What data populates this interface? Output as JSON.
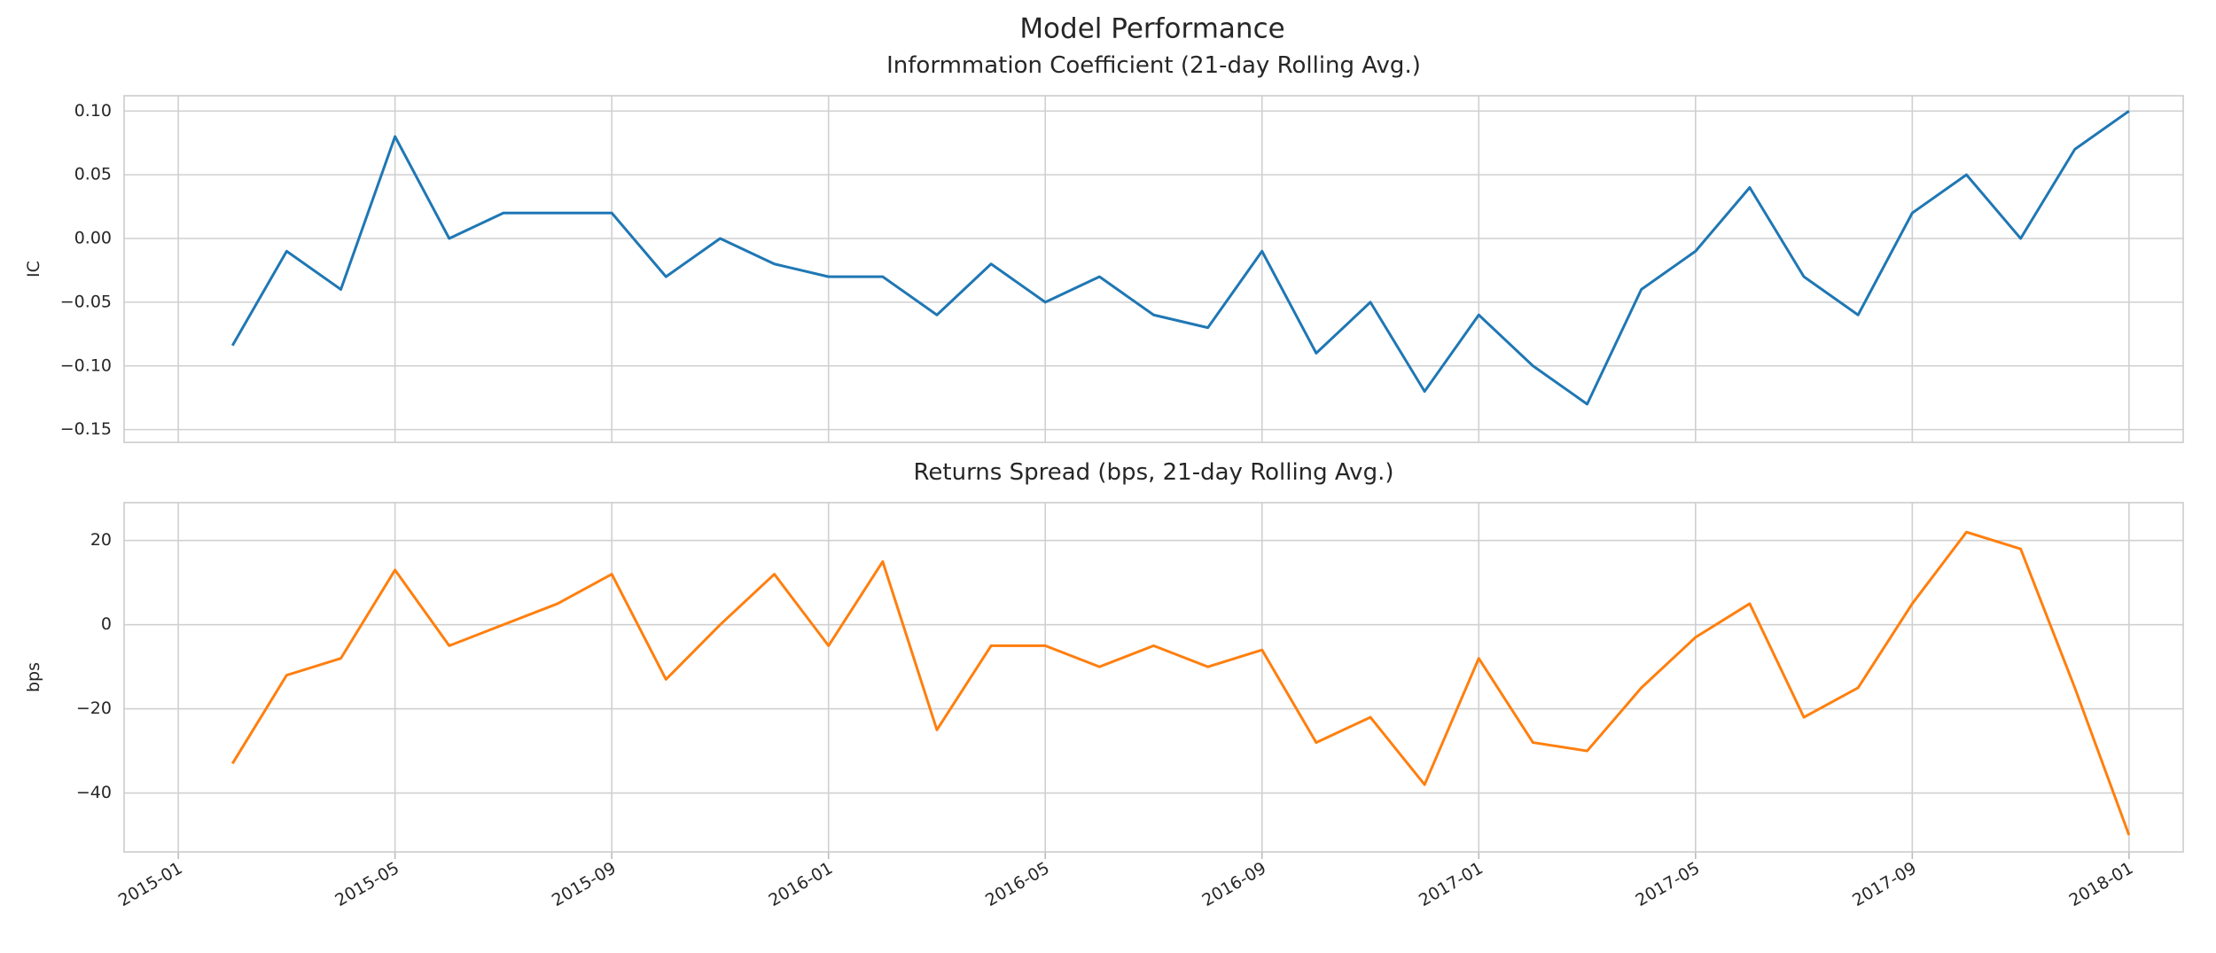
{
  "title": "Model Performance",
  "chart_data": [
    {
      "type": "line",
      "title": "Informmation Coefficient (21-day Rolling Avg.)",
      "ylabel": "IC",
      "x": [
        "2015-02",
        "2015-03",
        "2015-04",
        "2015-05",
        "2015-06",
        "2015-07",
        "2015-08",
        "2015-09",
        "2015-10",
        "2015-11",
        "2015-12",
        "2016-01",
        "2016-02",
        "2016-03",
        "2016-04",
        "2016-05",
        "2016-06",
        "2016-07",
        "2016-08",
        "2016-09",
        "2016-10",
        "2016-11",
        "2016-12",
        "2017-01",
        "2017-02",
        "2017-03",
        "2017-04",
        "2017-05",
        "2017-06",
        "2017-07",
        "2017-08",
        "2017-09",
        "2017-10",
        "2017-11",
        "2017-12",
        "2018-01"
      ],
      "series": [
        {
          "name": "IC",
          "color": "#1f77b4",
          "values": [
            -0.084,
            -0.01,
            -0.04,
            0.08,
            0.0,
            0.02,
            0.02,
            0.02,
            -0.03,
            0.0,
            -0.02,
            -0.03,
            -0.03,
            -0.06,
            -0.02,
            -0.05,
            -0.03,
            -0.06,
            -0.07,
            -0.01,
            -0.09,
            -0.05,
            -0.12,
            -0.06,
            -0.1,
            -0.13,
            -0.04,
            -0.01,
            0.04,
            -0.03,
            -0.06,
            0.02,
            0.05,
            0.0,
            0.07,
            0.1
          ]
        }
      ],
      "xlim": [
        "2014-12",
        "2018-02"
      ],
      "xticks": [
        "2015-01",
        "2015-05",
        "2015-09",
        "2016-01",
        "2016-05",
        "2016-09",
        "2017-01",
        "2017-05",
        "2017-09",
        "2018-01"
      ],
      "ylim": [
        -0.16,
        0.112
      ],
      "yticks": [
        {
          "value": -0.15,
          "label": "−0.15"
        },
        {
          "value": -0.1,
          "label": "−0.10"
        },
        {
          "value": -0.05,
          "label": "−0.05"
        },
        {
          "value": 0,
          "label": "0.00"
        },
        {
          "value": 0.05,
          "label": "0.05"
        },
        {
          "value": 0.1,
          "label": "0.10"
        }
      ],
      "grid": true
    },
    {
      "type": "line",
      "title": "Returns Spread (bps, 21-day Rolling Avg.)",
      "ylabel": "bps",
      "x": [
        "2015-02",
        "2015-03",
        "2015-04",
        "2015-05",
        "2015-06",
        "2015-07",
        "2015-08",
        "2015-09",
        "2015-10",
        "2015-11",
        "2015-12",
        "2016-01",
        "2016-02",
        "2016-03",
        "2016-04",
        "2016-05",
        "2016-06",
        "2016-07",
        "2016-08",
        "2016-09",
        "2016-10",
        "2016-11",
        "2016-12",
        "2017-01",
        "2017-02",
        "2017-03",
        "2017-04",
        "2017-05",
        "2017-06",
        "2017-07",
        "2017-08",
        "2017-09",
        "2017-10",
        "2017-11",
        "2017-12",
        "2018-01"
      ],
      "series": [
        {
          "name": "Returns Spread",
          "color": "#ff7f0e",
          "values": [
            -33,
            -12,
            -8,
            13,
            -5,
            0,
            5,
            12,
            -13,
            0,
            12,
            -5,
            15,
            -25,
            -5,
            -5,
            -10,
            -5,
            -10,
            -6,
            -28,
            -22,
            -38,
            -8,
            -28,
            -30,
            -15,
            -3,
            5,
            -22,
            -15,
            5,
            22,
            18,
            -15,
            -50
          ]
        }
      ],
      "xlim": [
        "2014-12",
        "2018-02"
      ],
      "xticks": [
        "2015-01",
        "2015-05",
        "2015-09",
        "2016-01",
        "2016-05",
        "2016-09",
        "2017-01",
        "2017-05",
        "2017-09",
        "2018-01"
      ],
      "ylim": [
        -54,
        29
      ],
      "yticks": [
        {
          "value": -40,
          "label": "−40"
        },
        {
          "value": -20,
          "label": "−20"
        },
        0,
        20
      ],
      "grid": true
    }
  ]
}
